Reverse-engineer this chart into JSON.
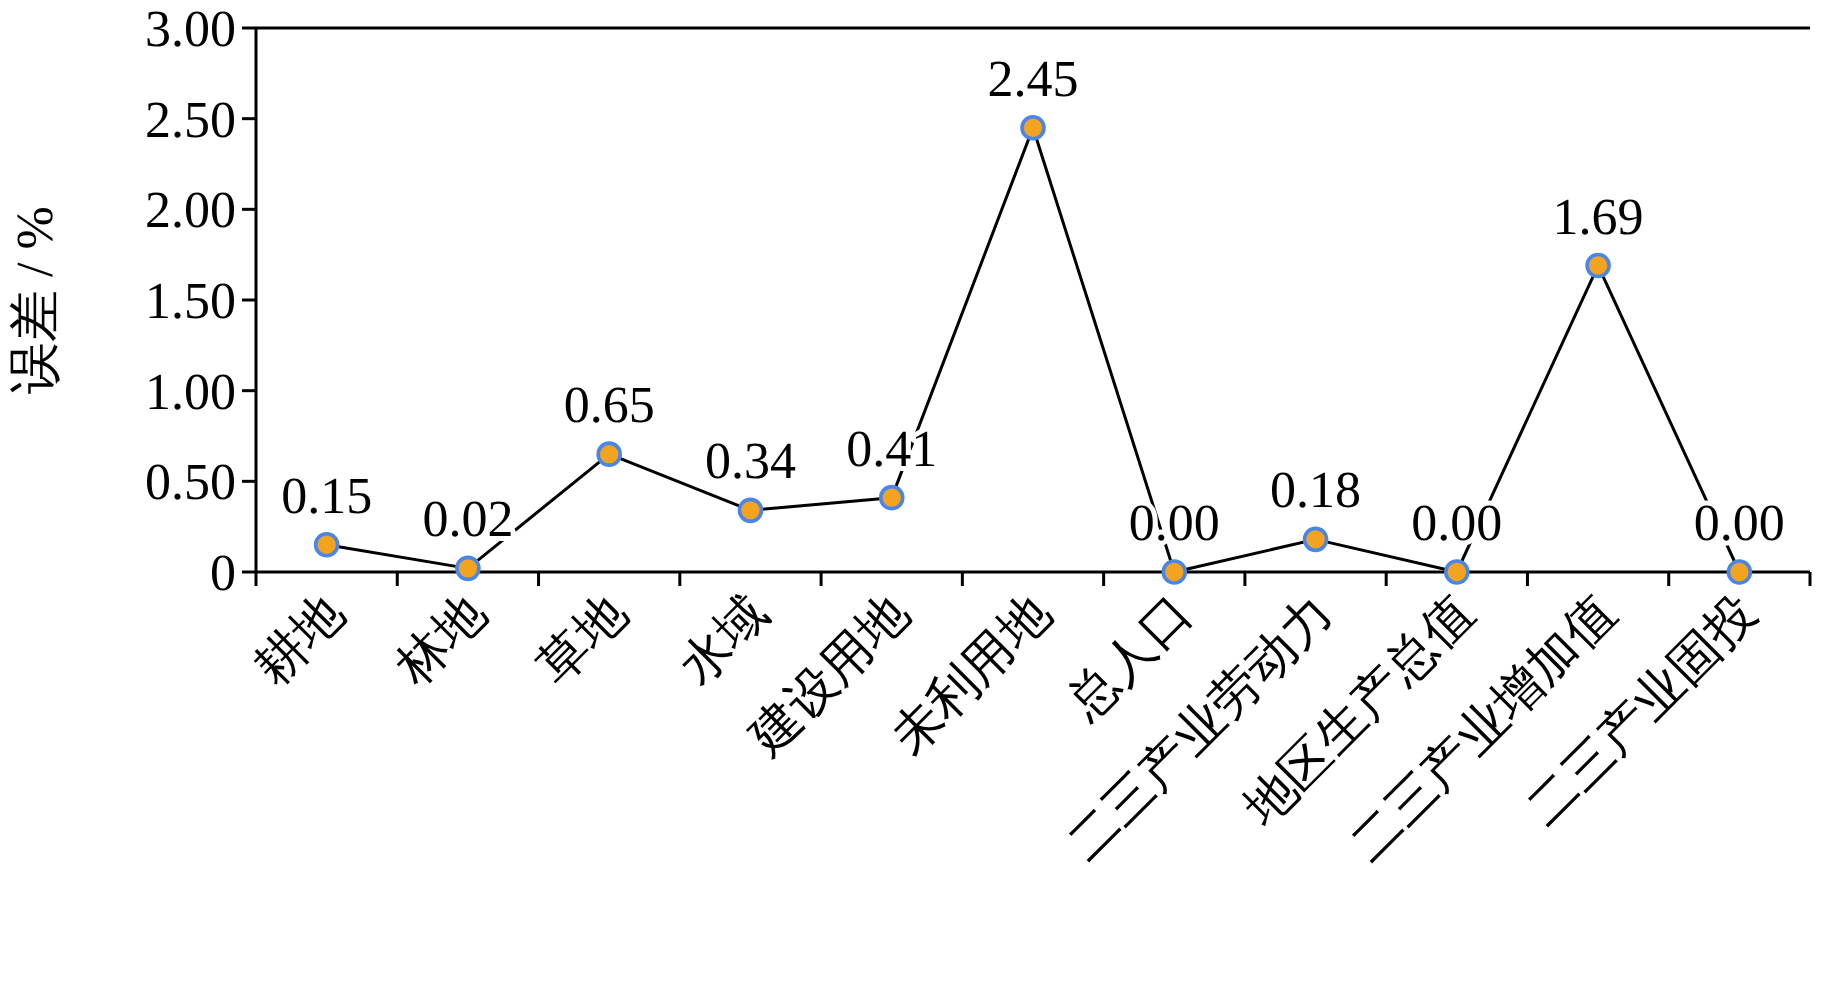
{
  "chart_data": {
    "type": "line",
    "ylabel": "误差 / %",
    "categories": [
      "耕地",
      "林地",
      "草地",
      "水域",
      "建设用地",
      "未利用地",
      "总人口",
      "二三产业劳动力",
      "地区生产总值",
      "二三产业增加值",
      "二三产业固投"
    ],
    "series": [
      {
        "color": "#f2a31f",
        "values": [
          0.15,
          0.02,
          0.65,
          0.34,
          0.41,
          2.45,
          0,
          0.18,
          0,
          1.69,
          0
        ],
        "value_labels": [
          "0.15",
          "0.02",
          "0.65",
          "0.34",
          "0.41",
          "2.45",
          "0.00",
          "0.18",
          "0.00",
          "1.69",
          "0.00"
        ]
      }
    ],
    "ylim": [
      0,
      3
    ],
    "yticks": [
      {
        "value": 0,
        "label": "0"
      },
      {
        "value": 0.5,
        "label": "0.50"
      },
      {
        "value": 1,
        "label": "1.00"
      },
      {
        "value": 1.5,
        "label": "1.50"
      },
      {
        "value": 2,
        "label": "2.00"
      },
      {
        "value": 2.5,
        "label": "2.50"
      },
      {
        "value": 3,
        "label": "3.00"
      }
    ],
    "marker": "circle",
    "line_style": "solid",
    "grid": false
  }
}
